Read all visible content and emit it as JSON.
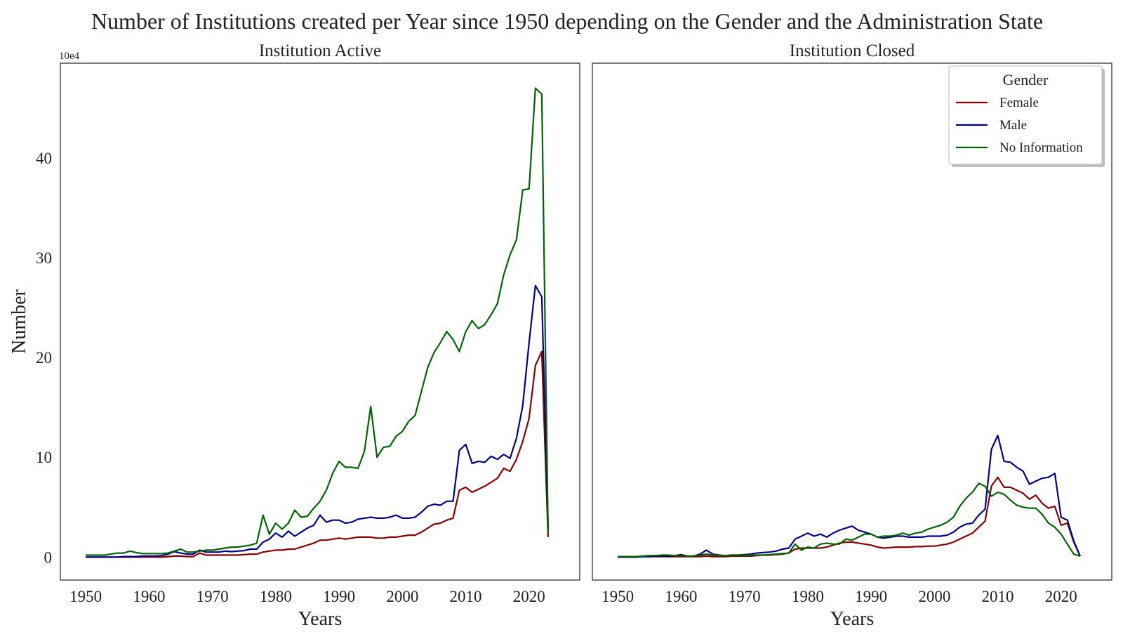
{
  "chart_data": {
    "type": "line",
    "title": "Number of Institutions created per Year since 1950 depending on the Gender and the Administration State",
    "ylabel": "Number",
    "y_offset_label": "10e4",
    "colors": {
      "Female": "#8b0000",
      "Male": "#00008b",
      "No Information": "#006400"
    },
    "legend": {
      "title": "Gender",
      "placement": "top-right",
      "entries": [
        "Female",
        "Male",
        "No Information"
      ]
    },
    "panels": [
      {
        "title": "Institution Active",
        "xlabel": "Years",
        "xlim": [
          1946,
          2028
        ],
        "ylim": [
          -2.3,
          49.5
        ],
        "xticks": [
          1950,
          1960,
          1970,
          1980,
          1990,
          2000,
          2010,
          2020
        ],
        "yticks": [
          0,
          10,
          20,
          30,
          40
        ],
        "x": [
          1950,
          1951,
          1952,
          1953,
          1954,
          1955,
          1956,
          1957,
          1958,
          1959,
          1960,
          1961,
          1962,
          1963,
          1964,
          1965,
          1966,
          1967,
          1968,
          1969,
          1970,
          1971,
          1972,
          1973,
          1974,
          1975,
          1976,
          1977,
          1978,
          1979,
          1980,
          1981,
          1982,
          1983,
          1984,
          1985,
          1986,
          1987,
          1988,
          1989,
          1990,
          1991,
          1992,
          1993,
          1994,
          1995,
          1996,
          1997,
          1998,
          1999,
          2000,
          2001,
          2002,
          2003,
          2004,
          2005,
          2006,
          2007,
          2008,
          2009,
          2010,
          2011,
          2012,
          2013,
          2014,
          2015,
          2016,
          2017,
          2018,
          2019,
          2020,
          2021,
          2022,
          2023
        ],
        "series": [
          {
            "name": "Female",
            "values": [
              0,
              0,
              0,
              0,
              0,
              0,
              0,
              0,
              0,
              0,
              0,
              0,
              0,
              0.05,
              0.1,
              0.1,
              0.05,
              0.05,
              0.4,
              0.2,
              0.2,
              0.2,
              0.2,
              0.2,
              0.2,
              0.25,
              0.3,
              0.3,
              0.5,
              0.6,
              0.7,
              0.7,
              0.8,
              0.8,
              1.0,
              1.2,
              1.4,
              1.7,
              1.7,
              1.8,
              1.9,
              1.8,
              1.9,
              2.0,
              2.0,
              2.0,
              1.9,
              1.9,
              2.0,
              2.0,
              2.1,
              2.2,
              2.2,
              2.5,
              2.9,
              3.3,
              3.4,
              3.7,
              3.9,
              6.7,
              7.0,
              6.5,
              6.8,
              7.1,
              7.5,
              7.9,
              8.9,
              8.6,
              9.8,
              11.6,
              13.9,
              19.2,
              20.6,
              2.0
            ]
          },
          {
            "name": "Male",
            "values": [
              0,
              0,
              0,
              0,
              0,
              0,
              0.05,
              0.05,
              0.05,
              0.1,
              0.1,
              0.1,
              0.15,
              0.3,
              0.55,
              0.4,
              0.3,
              0.3,
              0.7,
              0.5,
              0.5,
              0.5,
              0.6,
              0.55,
              0.6,
              0.65,
              0.8,
              0.8,
              1.5,
              1.8,
              2.4,
              2.0,
              2.6,
              2.1,
              2.5,
              2.9,
              3.2,
              4.2,
              3.5,
              3.7,
              3.7,
              3.4,
              3.5,
              3.8,
              3.9,
              4.0,
              3.9,
              3.9,
              4.0,
              4.2,
              3.9,
              3.9,
              4.0,
              4.5,
              5.1,
              5.3,
              5.2,
              5.6,
              5.6,
              10.7,
              11.3,
              9.4,
              9.6,
              9.5,
              10.1,
              9.8,
              10.3,
              9.9,
              11.9,
              15.2,
              21.5,
              27.2,
              26.1,
              3.0
            ]
          },
          {
            "name": "No Information",
            "values": [
              0.2,
              0.2,
              0.2,
              0.2,
              0.3,
              0.4,
              0.4,
              0.6,
              0.45,
              0.35,
              0.35,
              0.35,
              0.35,
              0.4,
              0.6,
              0.8,
              0.5,
              0.5,
              0.6,
              0.7,
              0.7,
              0.8,
              0.9,
              1.0,
              1.0,
              1.1,
              1.2,
              1.4,
              4.2,
              2.3,
              3.4,
              2.8,
              3.4,
              4.7,
              4.0,
              4.1,
              4.9,
              5.6,
              6.7,
              8.4,
              9.6,
              9.0,
              9.0,
              8.9,
              10.6,
              15.1,
              10.0,
              11.0,
              11.1,
              12.1,
              12.6,
              13.6,
              14.2,
              16.6,
              19.0,
              20.5,
              21.5,
              22.6,
              21.8,
              20.6,
              22.6,
              23.7,
              22.9,
              23.3,
              24.3,
              25.4,
              28.3,
              30.3,
              31.8,
              36.8,
              36.9,
              47.0,
              46.4,
              2.5
            ]
          }
        ]
      },
      {
        "title": "Institution Closed",
        "xlabel": "Years",
        "xlim": [
          1946,
          2028
        ],
        "ylim": [
          -2.3,
          49.5
        ],
        "xticks": [
          1950,
          1960,
          1970,
          1980,
          1990,
          2000,
          2010,
          2020
        ],
        "yticks": [],
        "x": [
          1950,
          1951,
          1952,
          1953,
          1954,
          1955,
          1956,
          1957,
          1958,
          1959,
          1960,
          1961,
          1962,
          1963,
          1964,
          1965,
          1966,
          1967,
          1968,
          1969,
          1970,
          1971,
          1972,
          1973,
          1974,
          1975,
          1976,
          1977,
          1978,
          1979,
          1980,
          1981,
          1982,
          1983,
          1984,
          1985,
          1986,
          1987,
          1988,
          1989,
          1990,
          1991,
          1992,
          1993,
          1994,
          1995,
          1996,
          1997,
          1998,
          1999,
          2000,
          2001,
          2002,
          2003,
          2004,
          2005,
          2006,
          2007,
          2008,
          2009,
          2010,
          2011,
          2012,
          2013,
          2014,
          2015,
          2016,
          2017,
          2018,
          2019,
          2020,
          2021,
          2022,
          2023
        ],
        "series": [
          {
            "name": "Female",
            "values": [
              0,
              0,
              0,
              0,
              0.05,
              0.05,
              0.05,
              0.05,
              0.05,
              0.05,
              0.05,
              0.05,
              0.05,
              0.05,
              0.1,
              0.05,
              0.05,
              0.05,
              0.1,
              0.1,
              0.1,
              0.1,
              0.15,
              0.2,
              0.2,
              0.25,
              0.3,
              0.4,
              0.8,
              0.9,
              0.9,
              0.9,
              0.9,
              1.0,
              1.2,
              1.4,
              1.5,
              1.5,
              1.4,
              1.3,
              1.2,
              1.0,
              0.9,
              0.95,
              1.0,
              1.0,
              1.0,
              1.05,
              1.05,
              1.1,
              1.1,
              1.2,
              1.3,
              1.5,
              1.8,
              2.1,
              2.4,
              3.0,
              3.6,
              7.1,
              8.0,
              7.0,
              7.0,
              6.7,
              6.4,
              5.8,
              6.2,
              5.4,
              4.9,
              5.1,
              3.2,
              3.4,
              1.5,
              0.1
            ]
          },
          {
            "name": "Male",
            "values": [
              0,
              0,
              0,
              0,
              0.05,
              0.05,
              0.1,
              0.1,
              0.1,
              0.15,
              0.25,
              0.1,
              0.1,
              0.3,
              0.7,
              0.3,
              0.2,
              0.15,
              0.2,
              0.2,
              0.25,
              0.3,
              0.4,
              0.45,
              0.5,
              0.6,
              0.8,
              0.9,
              1.8,
              2.1,
              2.4,
              2.1,
              2.3,
              2.0,
              2.4,
              2.7,
              2.9,
              3.1,
              2.7,
              2.5,
              2.3,
              2.0,
              1.9,
              2.0,
              2.1,
              2.1,
              2.0,
              2.0,
              2.0,
              2.1,
              2.1,
              2.1,
              2.2,
              2.5,
              3.0,
              3.3,
              3.4,
              4.2,
              4.8,
              10.8,
              12.2,
              9.6,
              9.5,
              9.0,
              8.6,
              7.3,
              7.6,
              7.9,
              8.0,
              8.4,
              4.0,
              3.7,
              1.6,
              0.1
            ]
          },
          {
            "name": "No Information",
            "values": [
              0.05,
              0.05,
              0.05,
              0.05,
              0.1,
              0.15,
              0.15,
              0.2,
              0.2,
              0.15,
              0.15,
              0.1,
              0.1,
              0.2,
              0.3,
              0.2,
              0.15,
              0.15,
              0.2,
              0.2,
              0.2,
              0.2,
              0.2,
              0.2,
              0.25,
              0.3,
              0.35,
              0.4,
              1.3,
              0.7,
              1.0,
              0.9,
              1.3,
              1.4,
              1.3,
              1.3,
              1.8,
              1.7,
              2.0,
              2.3,
              2.3,
              2.0,
              2.1,
              2.1,
              2.2,
              2.4,
              2.2,
              2.4,
              2.5,
              2.8,
              3.0,
              3.2,
              3.5,
              4.0,
              5.1,
              5.9,
              6.5,
              7.4,
              7.1,
              6.1,
              6.5,
              6.3,
              5.7,
              5.2,
              5.0,
              4.9,
              4.9,
              4.3,
              3.4,
              3.0,
              2.3,
              1.3,
              0.3,
              0.1
            ]
          }
        ]
      }
    ]
  }
}
